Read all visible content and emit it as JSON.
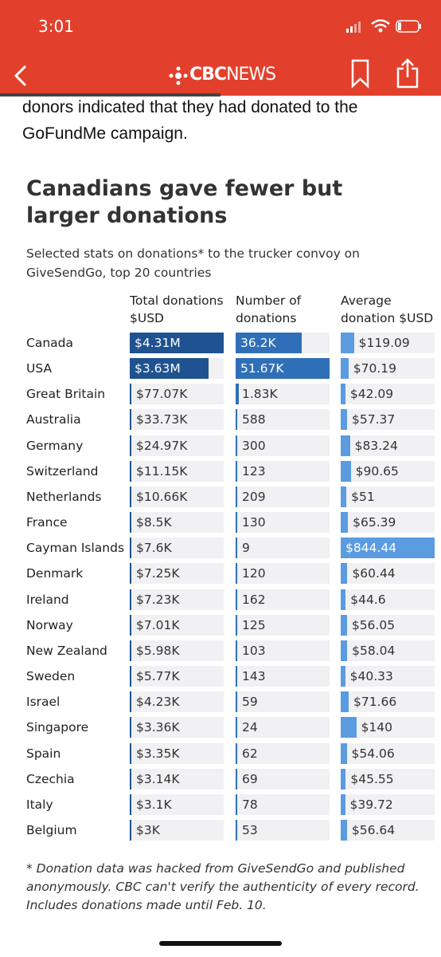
{
  "status_bar": {
    "time": "3:01"
  },
  "header": {
    "brand": "CBC",
    "brand_suffix": "NEWS"
  },
  "article": {
    "lines": [
      "donors indicated that they had donated to the",
      "GoFundMe campaign."
    ]
  },
  "chart_data": {
    "type": "bartable",
    "title": "Canadians gave fewer but larger donations",
    "subtitle": "Selected stats on donations* to the trucker convoy on GiveSendGo, top 20 countries",
    "categories": [
      "Canada",
      "USA",
      "Great Britain",
      "Australia",
      "Germany",
      "Switzerland",
      "Netherlands",
      "France",
      "Cayman Islands",
      "Denmark",
      "Ireland",
      "Norway",
      "New Zealand",
      "Sweden",
      "Israel",
      "Singapore",
      "Spain",
      "Czechia",
      "Italy",
      "Belgium"
    ],
    "series": [
      {
        "name": "Total donations $USD",
        "color": "#1f5290",
        "values": [
          4310000,
          3630000,
          77070,
          33730,
          24970,
          11150,
          10660,
          8500,
          7600,
          7250,
          7230,
          7010,
          5980,
          5770,
          4230,
          3360,
          3350,
          3140,
          3100,
          3000
        ],
        "value_labels": [
          "$4.31M",
          "$3.63M",
          "$77.07K",
          "$33.73K",
          "$24.97K",
          "$11.15K",
          "$10.66K",
          "$8.5K",
          "$7.6K",
          "$7.25K",
          "$7.23K",
          "$7.01K",
          "$5.98K",
          "$5.77K",
          "$4.23K",
          "$3.36K",
          "$3.35K",
          "$3.14K",
          "$3.1K",
          "$3K"
        ]
      },
      {
        "name": "Number of donations",
        "color": "#2f6fb7",
        "values": [
          36200,
          51670,
          1830,
          588,
          300,
          123,
          209,
          130,
          9,
          120,
          162,
          125,
          103,
          143,
          59,
          24,
          62,
          69,
          78,
          53
        ],
        "value_labels": [
          "36.2K",
          "51.67K",
          "1.83K",
          "588",
          "300",
          "123",
          "209",
          "130",
          "9",
          "120",
          "162",
          "125",
          "103",
          "143",
          "59",
          "24",
          "62",
          "69",
          "78",
          "53"
        ]
      },
      {
        "name": "Average donation $USD",
        "color": "#5b9be0",
        "values": [
          119.09,
          70.19,
          42.09,
          57.37,
          83.24,
          90.65,
          51,
          65.39,
          844.44,
          60.44,
          44.6,
          56.05,
          58.04,
          40.33,
          71.66,
          140,
          54.06,
          45.55,
          39.72,
          56.64
        ],
        "value_labels": [
          "$119.09",
          "$70.19",
          "$42.09",
          "$57.37",
          "$83.24",
          "$90.65",
          "$51",
          "$65.39",
          "$844.44",
          "$60.44",
          "$44.6",
          "$56.05",
          "$58.04",
          "$40.33",
          "$71.66",
          "$140",
          "$54.06",
          "$45.55",
          "$39.72",
          "$56.64"
        ]
      }
    ],
    "note": [
      "* Donation data was hacked from GiveSendGo and published",
      "anonymously. CBC can't verify the authenticity of every record.",
      "Includes donations made until Feb. 10."
    ]
  }
}
